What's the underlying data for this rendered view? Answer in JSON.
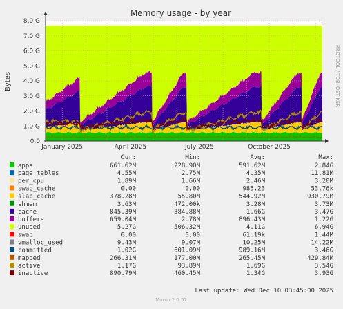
{
  "chart_data": {
    "type": "area",
    "title": "Memory usage - by year",
    "ylabel": "Bytes",
    "side_label": "RRDTOOL / TOBI OETIKER",
    "x_ticks": [
      "January 2025",
      "April 2025",
      "July 2025",
      "October 2025"
    ],
    "y_ticks": [
      "0.0",
      "0.5 G",
      "1.0 G",
      "1.5 G",
      "2.0 G",
      "2.5 G",
      "3.0 G",
      "3.5 G",
      "4.0 G",
      "4.5 G",
      "5.0 G",
      "5.5 G",
      "6.0 G",
      "6.5 G",
      "7.0 G",
      "7.5 G",
      "8.0 G"
    ],
    "ylim": [
      0,
      8.0
    ],
    "x_range": [
      "2024-12-10",
      "2025-12-10"
    ],
    "grid": true,
    "stack_order": [
      "apps",
      "page_tables",
      "per_cpu",
      "swap_cache",
      "slab_cache",
      "shmem",
      "cache",
      "buffers",
      "unused",
      "swap"
    ],
    "line_series": [
      "vmalloc_used",
      "committed",
      "mapped",
      "active",
      "inactive"
    ],
    "series": [
      {
        "name": "apps",
        "color": "#00cc00",
        "cur": "661.62M",
        "min": "228.90M",
        "avg": "591.62M",
        "max": "2.84G"
      },
      {
        "name": "page_tables",
        "color": "#0066b3",
        "cur": "4.55M",
        "min": "2.75M",
        "avg": "4.35M",
        "max": "11.81M"
      },
      {
        "name": "per_cpu",
        "color": "#ffe6a0",
        "cur": "1.89M",
        "min": "1.66M",
        "avg": "2.46M",
        "max": "3.20M"
      },
      {
        "name": "swap_cache",
        "color": "#ff8000",
        "cur": "0.00",
        "min": "0.00",
        "avg": "985.23",
        "max": "53.76k"
      },
      {
        "name": "slab_cache",
        "color": "#ffcc00",
        "cur": "378.28M",
        "min": "55.80M",
        "avg": "544.92M",
        "max": "930.79M"
      },
      {
        "name": "shmem",
        "color": "#008f00",
        "cur": "3.63M",
        "min": "472.00k",
        "avg": "3.28M",
        "max": "3.73M"
      },
      {
        "name": "cache",
        "color": "#330099",
        "cur": "845.39M",
        "min": "384.88M",
        "avg": "1.66G",
        "max": "3.47G"
      },
      {
        "name": "buffers",
        "color": "#990099",
        "cur": "659.04M",
        "min": "2.78M",
        "avg": "896.43M",
        "max": "1.22G"
      },
      {
        "name": "unused",
        "color": "#ccff00",
        "cur": "5.27G",
        "min": "506.32M",
        "avg": "4.11G",
        "max": "6.94G"
      },
      {
        "name": "swap",
        "color": "#ff0000",
        "cur": "0.00",
        "min": "0.00",
        "avg": "61.19k",
        "max": "1.44M"
      },
      {
        "name": "vmalloc_used",
        "color": "#808080",
        "cur": "9.43M",
        "min": "9.07M",
        "avg": "10.25M",
        "max": "14.22M"
      },
      {
        "name": "committed",
        "color": "#004d80",
        "cur": "1.02G",
        "min": "601.09M",
        "avg": "989.16M",
        "max": "3.46G"
      },
      {
        "name": "mapped",
        "color": "#b35a00",
        "cur": "266.31M",
        "min": "177.00M",
        "avg": "265.45M",
        "max": "429.84M"
      },
      {
        "name": "active",
        "color": "#b38f00",
        "cur": "1.17G",
        "min": "93.89M",
        "avg": "1.69G",
        "max": "3.54G"
      },
      {
        "name": "inactive",
        "color": "#7a0000",
        "cur": "890.79M",
        "min": "460.45M",
        "avg": "1.34G",
        "max": "3.93G"
      }
    ]
  },
  "legend_header": {
    "cur": "Cur:",
    "min": "Min:",
    "avg": "Avg:",
    "max": "Max:"
  },
  "footer": {
    "last_update": "Last update: Wed Dec 10 03:45:00 2025",
    "version": "Munin 2.0.57"
  }
}
